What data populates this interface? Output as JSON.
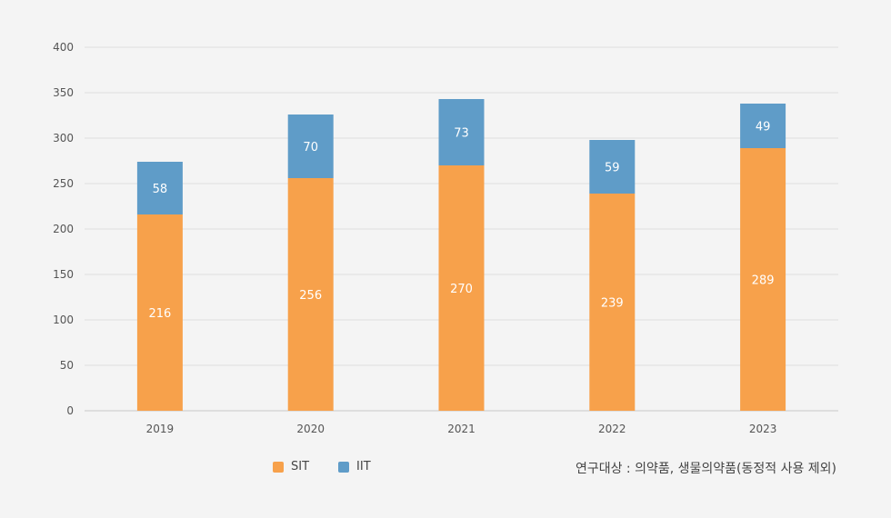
{
  "chart_data": {
    "type": "bar",
    "stacked": true,
    "categories": [
      "2019",
      "2020",
      "2021",
      "2022",
      "2023"
    ],
    "series": [
      {
        "name": "SIT",
        "values": [
          216,
          256,
          270,
          239,
          289
        ],
        "color": "#f7a14b"
      },
      {
        "name": "IIT",
        "values": [
          58,
          70,
          73,
          59,
          49
        ],
        "color": "#5f9cc8"
      }
    ],
    "ylim": [
      0,
      400
    ],
    "yticks": [
      0,
      50,
      100,
      150,
      200,
      250,
      300,
      350,
      400
    ],
    "grid": true,
    "legend": "bottom"
  },
  "note": "연구대상 : 의약품, 생물의약품(동정적 사용 제외)"
}
